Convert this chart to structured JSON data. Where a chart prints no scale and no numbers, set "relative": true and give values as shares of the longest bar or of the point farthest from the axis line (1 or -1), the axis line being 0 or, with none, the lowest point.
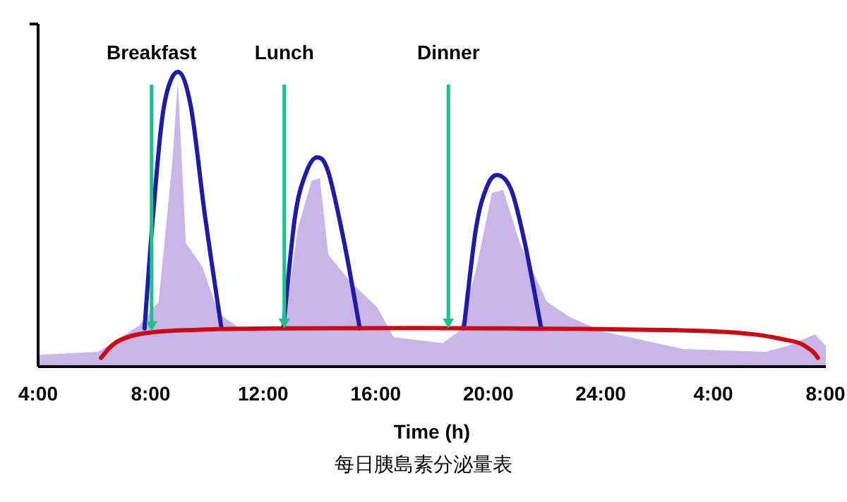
{
  "chart_data": {
    "type": "area",
    "relative": true,
    "xlabel": "Time (h)",
    "xlim": [
      "--01-01T04:00",
      "--01-02T08:00"
    ],
    "xticks": [
      {
        "value": "--01-01T04:00",
        "label": "4:00"
      },
      {
        "value": "--01-01T08:00",
        "label": "8:00"
      },
      {
        "value": "--01-01T12:00",
        "label": "12:00"
      },
      {
        "value": "--01-01T16:00",
        "label": "16:00"
      },
      {
        "value": "--01-01T20:00",
        "label": "20:00"
      },
      {
        "value": "--01-02T00:00",
        "label": "24:00"
      },
      {
        "value": "--01-02T04:00",
        "label": "4:00"
      },
      {
        "value": "--01-02T08:00",
        "label": "8:00"
      }
    ],
    "series": [
      {
        "type": "area",
        "color": "#c9b5e8",
        "x": [
          "--01-01T04:00",
          "--01-01T06:08",
          "--01-01T07:36",
          "--01-01T08:17",
          "--01-01T08:46",
          "--01-01T08:58",
          "--01-01T09:15",
          "--01-01T09:50",
          "--01-01T10:25",
          "--01-01T11:11",
          "--01-01T11:58",
          "--01-01T12:45",
          "--01-01T13:14",
          "--01-01T13:43",
          "--01-01T14:01",
          "--01-01T14:19",
          "--01-01T15:05",
          "--01-01T16:04",
          "--01-01T16:38",
          "--01-01T18:23",
          "--01-01T18:58",
          "--01-01T19:34",
          "--01-01T20:08",
          "--01-01T20:32",
          "--01-01T21:07",
          "--01-01T22:05",
          "--01-01T22:52",
          "--01-02T00:02",
          "--01-02T02:56",
          "--01-02T05:52",
          "--01-02T06:38",
          "--01-02T07:37",
          "--01-02T08:00"
        ],
        "values": [
          0.04,
          0.05,
          0.14,
          0.22,
          0.69,
          0.97,
          0.42,
          0.34,
          0.18,
          0.13,
          0.12,
          0.14,
          0.47,
          0.63,
          0.64,
          0.38,
          0.29,
          0.2,
          0.1,
          0.08,
          0.12,
          0.33,
          0.59,
          0.6,
          0.42,
          0.22,
          0.17,
          0.12,
          0.06,
          0.05,
          0.07,
          0.11,
          0.07
        ]
      },
      {
        "type": "line",
        "color": "#1c1ca6",
        "x": [
          "--01-01T07:47",
          "--01-01T08:05",
          "--01-01T08:28",
          "--01-01T08:58",
          "--01-01T09:26",
          "--01-01T09:56",
          "--01-01T10:31"
        ],
        "values": [
          0.13,
          0.51,
          0.88,
          1.0,
          0.88,
          0.51,
          0.13
        ]
      },
      {
        "type": "line",
        "color": "#1c1ca6",
        "x": [
          "--01-01T12:43",
          "--01-01T13:08",
          "--01-01T13:32",
          "--01-01T13:55",
          "--01-01T14:19",
          "--01-01T14:53",
          "--01-01T15:26"
        ],
        "values": [
          0.13,
          0.51,
          0.66,
          0.71,
          0.66,
          0.42,
          0.13
        ]
      },
      {
        "type": "line",
        "color": "#1c1ca6",
        "x": [
          "--01-01T19:08",
          "--01-01T19:34",
          "--01-01T19:57",
          "--01-01T20:20",
          "--01-01T20:49",
          "--01-01T21:18",
          "--01-01T21:53"
        ],
        "values": [
          0.13,
          0.47,
          0.61,
          0.65,
          0.6,
          0.42,
          0.13
        ]
      },
      {
        "type": "line",
        "color": "#cc0a14",
        "x": [
          "--01-01T06:14",
          "--01-01T06:55",
          "--01-01T08:28",
          "--01-01T12:22",
          "--01-01T20:08",
          "--01-02T03:55",
          "--01-02T06:38",
          "--01-02T07:25",
          "--01-02T07:43"
        ],
        "values": [
          0.03,
          0.09,
          0.12,
          0.13,
          0.13,
          0.12,
          0.09,
          0.06,
          0.03
        ]
      }
    ],
    "annotations": [
      {
        "text": "Breakfast",
        "x": "--01-01T08:02",
        "y": 0.12
      },
      {
        "text": "Lunch",
        "x": "--01-01T12:45",
        "y": 0.13
      },
      {
        "text": "Dinner",
        "x": "--01-01T18:35",
        "y": 0.13
      },
      "每日胰島素分泌量表"
    ]
  }
}
